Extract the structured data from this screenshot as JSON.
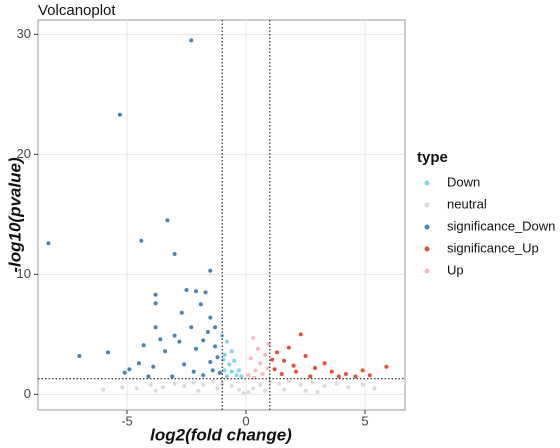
{
  "chart_data": {
    "type": "scatter",
    "title": "Volcanoplot",
    "x_label": "log2(fold change)",
    "y_label": "-log10(pvalue)",
    "xlim": [
      -8.74,
      6.68
    ],
    "ylim": [
      -1.3,
      31.2
    ],
    "xticks": [
      -5,
      0,
      5
    ],
    "yticks": [
      0,
      10,
      20,
      30
    ],
    "grid": true,
    "vlines": [
      -1,
      1
    ],
    "hline": 1.301,
    "legend_title": "type",
    "legend_position": "right",
    "series": [
      {
        "name": "Down",
        "color": "#87ceeb",
        "x": [
          -1.0,
          -0.8,
          -0.6,
          -0.9,
          -0.5,
          -0.7,
          -0.3,
          -0.9,
          -0.4,
          -0.6,
          -0.2,
          -0.8,
          -0.95
        ],
        "values": [
          4.9,
          4.4,
          3.6,
          3.3,
          2.8,
          2.5,
          2.0,
          2.0,
          1.6,
          1.9,
          1.5,
          1.5,
          2.9
        ]
      },
      {
        "name": "neutral",
        "color": "#d3dbe3",
        "x": [
          -6.0,
          -5.2,
          -4.6,
          -4.0,
          -3.5,
          -3.0,
          -2.6,
          -2.2,
          -1.8,
          -1.4,
          -1.0,
          -0.6,
          -0.3,
          -0.1,
          0.1,
          0.3,
          0.6,
          1.0,
          1.4,
          1.8,
          2.3,
          2.8,
          3.3,
          3.8,
          4.3,
          4.9,
          5.4,
          -2.0,
          -1.2,
          0.8,
          1.6,
          2.5,
          -3.8,
          3.0
        ],
        "values": [
          0.4,
          0.6,
          0.5,
          0.8,
          0.6,
          0.9,
          0.7,
          1.0,
          0.8,
          1.1,
          0.9,
          0.7,
          0.4,
          0.1,
          0.2,
          0.5,
          0.8,
          1.0,
          0.9,
          1.1,
          0.8,
          1.0,
          0.7,
          0.9,
          0.6,
          0.8,
          0.5,
          0.3,
          0.5,
          0.3,
          0.4,
          0.3,
          0.3,
          0.2
        ]
      },
      {
        "name": "significance_Down",
        "color": "#4682b4",
        "x": [
          -2.3,
          -5.3,
          -3.3,
          -8.3,
          -4.4,
          -3.0,
          -1.5,
          -2.5,
          -3.8,
          -3.8,
          -2.1,
          -1.7,
          -1.9,
          -2.7,
          -1.5,
          -1.3,
          -3.8,
          -2.3,
          -1.6,
          -3.0,
          -3.6,
          -2.8,
          -1.8,
          -4.3,
          -2.1,
          -3.4,
          -5.8,
          -7.0,
          -4.5,
          -4.9,
          -3.9,
          -2.6,
          -1.5,
          -1.2,
          -1.4,
          -2.2,
          -1.8,
          -3.1,
          -5.1,
          -1.1,
          -1.3,
          -4.1
        ],
        "values": [
          29.5,
          23.3,
          14.5,
          12.6,
          12.8,
          11.7,
          10.3,
          8.7,
          8.3,
          7.6,
          8.6,
          8.5,
          7.5,
          6.8,
          6.4,
          5.6,
          5.6,
          5.6,
          5.2,
          4.9,
          4.6,
          4.4,
          4.5,
          4.1,
          3.8,
          3.6,
          3.5,
          3.2,
          2.6,
          2.1,
          2.3,
          2.5,
          2.7,
          3.1,
          2.0,
          1.9,
          1.6,
          1.5,
          1.8,
          1.8,
          4.0,
          1.5
        ]
      },
      {
        "name": "significance_Up",
        "color": "#ee4b3b",
        "x": [
          2.3,
          1.8,
          2.5,
          1.3,
          1.6,
          2.0,
          2.9,
          3.3,
          3.6,
          4.2,
          4.9,
          5.2,
          5.9,
          4.6,
          1.2,
          1.5,
          2.7,
          3.9,
          1.1,
          2.1
        ],
        "values": [
          5.0,
          3.9,
          3.2,
          3.5,
          2.8,
          2.4,
          2.2,
          2.6,
          1.9,
          1.7,
          2.0,
          1.6,
          2.3,
          1.5,
          2.1,
          1.7,
          1.5,
          1.5,
          2.9,
          1.9
        ]
      },
      {
        "name": "Up",
        "color": "#ffb6c1",
        "x": [
          0.3,
          0.5,
          0.2,
          0.6,
          0.8,
          0.4,
          0.9,
          0.1,
          0.7,
          0.35,
          0.95
        ],
        "values": [
          4.7,
          3.8,
          3.0,
          2.6,
          3.3,
          2.0,
          2.2,
          1.6,
          1.7,
          1.4,
          4.2
        ]
      }
    ]
  }
}
